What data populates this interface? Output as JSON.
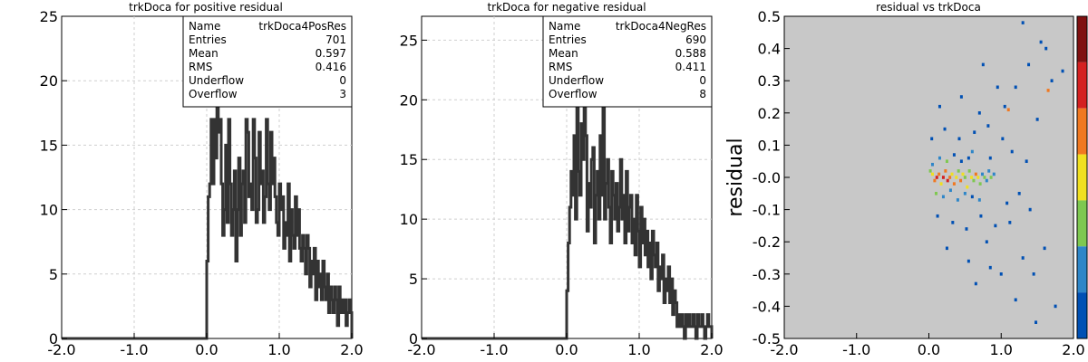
{
  "chart_data": [
    {
      "type": "histogram",
      "title": "trkDoca for positive residual",
      "xlim": [
        -2.0,
        2.0
      ],
      "ylim": [
        0,
        25
      ],
      "x_ticks": [
        "-2.0",
        "-1.0",
        "0.0",
        "1.0",
        "2.0"
      ],
      "y_ticks": [
        "0",
        "5",
        "10",
        "15",
        "20",
        "25"
      ],
      "grid": true,
      "stats": {
        "Name": "trkDoca4PosRes",
        "Entries": "701",
        "Mean": "0.597",
        "RMS": "0.416",
        "Underflow": "0",
        "Overflow": "3"
      },
      "bin_start": 0.0,
      "bin_width": 0.02,
      "values": [
        6,
        11,
        12,
        17,
        12,
        17,
        14,
        20,
        16,
        17,
        12,
        8,
        10,
        15,
        9,
        17,
        12,
        8,
        10,
        13,
        6,
        10,
        14,
        8,
        12,
        13,
        9,
        17,
        16,
        11,
        12,
        10,
        17,
        14,
        9,
        10,
        16,
        12,
        13,
        9,
        11,
        17,
        12,
        10,
        16,
        12,
        14,
        11,
        9,
        8,
        12,
        10,
        11,
        7,
        9,
        8,
        12,
        6,
        10,
        8,
        7,
        11,
        8,
        10,
        7,
        6,
        8,
        7,
        5,
        8,
        7,
        4,
        6,
        5,
        7,
        3,
        6,
        4,
        5,
        3,
        6,
        4,
        3,
        5,
        2,
        4,
        3,
        2,
        4,
        3,
        1,
        4,
        2,
        3,
        2,
        3,
        1,
        2,
        3,
        2
      ]
    },
    {
      "type": "histogram",
      "title": "trkDoca for negative residual",
      "xlim": [
        -2.0,
        2.0
      ],
      "ylim": [
        0,
        27
      ],
      "x_ticks": [
        "-2.0",
        "-1.0",
        "0.0",
        "1.0",
        "2.0"
      ],
      "y_ticks": [
        "0",
        "5",
        "10",
        "15",
        "20",
        "25"
      ],
      "grid": true,
      "stats": {
        "Name": "trkDoca4NegRes",
        "Entries": "690",
        "Mean": "0.588",
        "RMS": "0.411",
        "Underflow": "0",
        "Overflow": "8"
      },
      "bin_start": 0.0,
      "bin_width": 0.02,
      "values": [
        4,
        8,
        11,
        14,
        12,
        17,
        10,
        20,
        14,
        12,
        18,
        15,
        21,
        17,
        9,
        13,
        11,
        15,
        16,
        8,
        12,
        14,
        10,
        17,
        12,
        21,
        10,
        13,
        15,
        11,
        8,
        14,
        12,
        10,
        13,
        9,
        11,
        15,
        10,
        12,
        8,
        14,
        9,
        11,
        12,
        8,
        10,
        7,
        12,
        9,
        6,
        11,
        8,
        10,
        7,
        9,
        6,
        8,
        5,
        9,
        7,
        6,
        8,
        4,
        6,
        5,
        7,
        3,
        5,
        4,
        6,
        3,
        5,
        2,
        4,
        3,
        1,
        2,
        1,
        2,
        1,
        0,
        2,
        1,
        2,
        1,
        1,
        2,
        1,
        0,
        2,
        1,
        1,
        2,
        1,
        0,
        1,
        2,
        1,
        1
      ]
    },
    {
      "type": "heatmap",
      "title": "residual vs trkDoca",
      "ylabel": "residual",
      "xlim": [
        -2.0,
        2.0
      ],
      "ylim": [
        -0.5,
        0.5
      ],
      "x_ticks": [
        "-2.0",
        "-1.0",
        "0.0",
        "1.0",
        "2.0"
      ],
      "y_ticks": [
        "0.5",
        "0.4",
        "0.3",
        "0.2",
        "0.1",
        "-0.0",
        "-0.1",
        "-0.2",
        "-0.3",
        "-0.4",
        "-0.5"
      ],
      "background": "#c8c8c8",
      "palette": [
        "#0050b4",
        "#2e86c8",
        "#7ec850",
        "#f0e020",
        "#f07820",
        "#d42020",
        "#801010"
      ],
      "cells": [
        [
          0.02,
          0.02,
          3
        ],
        [
          0.05,
          0.01,
          4
        ],
        [
          0.08,
          -0.01,
          5
        ],
        [
          0.11,
          0.0,
          6
        ],
        [
          0.14,
          0.01,
          5
        ],
        [
          0.17,
          -0.02,
          4
        ],
        [
          0.2,
          0.0,
          6
        ],
        [
          0.23,
          0.02,
          5
        ],
        [
          0.26,
          -0.01,
          6
        ],
        [
          0.29,
          0.0,
          5
        ],
        [
          0.32,
          0.01,
          4
        ],
        [
          0.35,
          -0.02,
          5
        ],
        [
          0.38,
          0.0,
          4
        ],
        [
          0.41,
          0.02,
          3
        ],
        [
          0.44,
          -0.01,
          5
        ],
        [
          0.47,
          0.01,
          4
        ],
        [
          0.5,
          0.0,
          3
        ],
        [
          0.53,
          -0.03,
          4
        ],
        [
          0.56,
          0.02,
          3
        ],
        [
          0.59,
          0.0,
          4
        ],
        [
          0.62,
          -0.01,
          3
        ],
        [
          0.65,
          0.01,
          5
        ],
        [
          0.68,
          0.0,
          4
        ],
        [
          0.71,
          -0.02,
          3
        ],
        [
          0.74,
          0.01,
          2
        ],
        [
          0.77,
          0.0,
          3
        ],
        [
          0.8,
          -0.01,
          2
        ],
        [
          0.83,
          0.02,
          2
        ],
        [
          0.86,
          0.0,
          3
        ],
        [
          0.9,
          0.01,
          2
        ],
        [
          0.05,
          0.04,
          2
        ],
        [
          0.1,
          -0.05,
          3
        ],
        [
          0.15,
          0.06,
          2
        ],
        [
          0.2,
          -0.06,
          2
        ],
        [
          0.25,
          0.05,
          3
        ],
        [
          0.3,
          -0.04,
          2
        ],
        [
          0.35,
          0.07,
          1
        ],
        [
          0.4,
          -0.07,
          2
        ],
        [
          0.45,
          0.05,
          1
        ],
        [
          0.5,
          -0.05,
          2
        ],
        [
          0.55,
          0.06,
          1
        ],
        [
          0.6,
          -0.06,
          1
        ],
        [
          0.04,
          0.12,
          1
        ],
        [
          0.12,
          -0.12,
          1
        ],
        [
          0.22,
          0.15,
          1
        ],
        [
          0.33,
          -0.14,
          1
        ],
        [
          0.42,
          0.12,
          1
        ],
        [
          0.52,
          -0.16,
          1
        ],
        [
          0.63,
          0.14,
          1
        ],
        [
          0.72,
          -0.12,
          1
        ],
        [
          0.82,
          0.16,
          1
        ],
        [
          0.92,
          -0.15,
          1
        ],
        [
          1.02,
          0.12,
          1
        ],
        [
          1.12,
          -0.14,
          1
        ],
        [
          1.05,
          0.22,
          1
        ],
        [
          1.1,
          0.21,
          5
        ],
        [
          1.2,
          0.28,
          1
        ],
        [
          1.3,
          -0.25,
          1
        ],
        [
          1.38,
          0.35,
          1
        ],
        [
          1.45,
          -0.3,
          1
        ],
        [
          1.55,
          0.42,
          1
        ],
        [
          1.65,
          0.27,
          5
        ],
        [
          1.7,
          0.3,
          1
        ],
        [
          1.75,
          -0.4,
          1
        ],
        [
          1.85,
          0.33,
          1
        ],
        [
          1.6,
          -0.22,
          1
        ],
        [
          1.5,
          0.18,
          1
        ],
        [
          1.4,
          -0.1,
          1
        ],
        [
          1.35,
          0.05,
          1
        ],
        [
          1.25,
          -0.05,
          1
        ],
        [
          1.15,
          0.08,
          1
        ],
        [
          1.08,
          -0.08,
          1
        ],
        [
          0.95,
          0.28,
          1
        ],
        [
          0.85,
          -0.28,
          1
        ],
        [
          0.75,
          0.35,
          1
        ],
        [
          0.65,
          -0.33,
          1
        ],
        [
          1.48,
          -0.45,
          1
        ],
        [
          1.3,
          0.48,
          1
        ],
        [
          0.15,
          0.22,
          1
        ],
        [
          0.25,
          -0.22,
          1
        ],
        [
          0.45,
          0.25,
          1
        ],
        [
          0.55,
          -0.26,
          1
        ],
        [
          0.7,
          0.2,
          1
        ],
        [
          0.8,
          -0.2,
          1
        ],
        [
          1.0,
          -0.3,
          1
        ],
        [
          1.2,
          -0.38,
          1
        ],
        [
          1.62,
          0.4,
          1
        ],
        [
          0.6,
          0.08,
          2
        ],
        [
          0.7,
          -0.07,
          2
        ],
        [
          0.85,
          0.06,
          1
        ]
      ]
    }
  ]
}
